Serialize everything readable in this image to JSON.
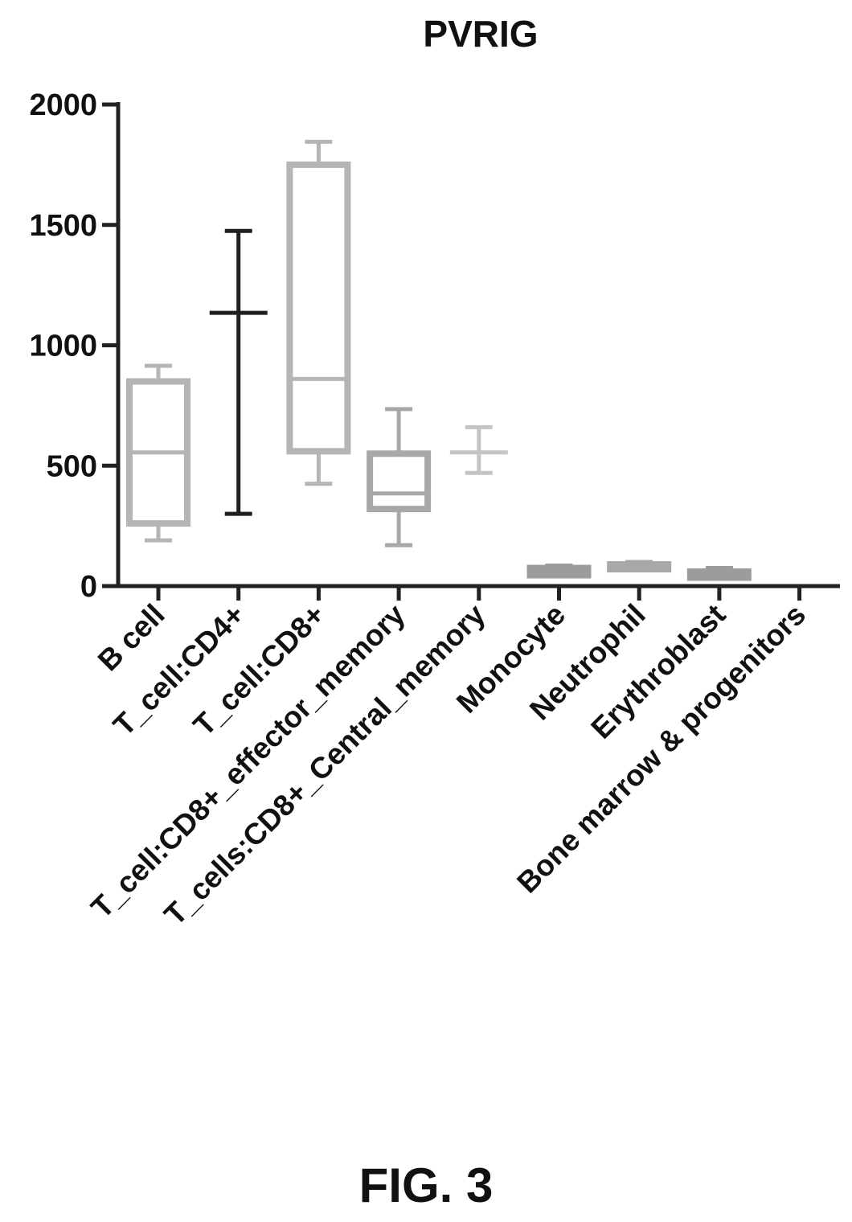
{
  "figure_label": "FIG. 3",
  "chart_data": {
    "type": "box",
    "title": "PVRIG",
    "xlabel": "",
    "ylabel": "",
    "ylim": [
      0,
      2000
    ],
    "yticks": [
      0,
      500,
      1000,
      1500,
      2000
    ],
    "ytick_labels": [
      "0",
      "500",
      "1000",
      "1500",
      "2000"
    ],
    "grid": false,
    "legend": "none",
    "categories": [
      "B cell",
      "T_cell:CD4+",
      "T_cell:CD8+",
      "T_cell:CD8+_effector_memory",
      "T_cells:CD8+_Central_memory",
      "Monocyte",
      "Neutrophil",
      "Erythroblast",
      "Bone marrow & progenitors"
    ],
    "boxes": [
      {
        "min": 190,
        "q1": 260,
        "median": 555,
        "q3": 850,
        "max": 915,
        "color": "#b5b5b5"
      },
      {
        "min": 300,
        "q1": 1135,
        "median": 1135,
        "q3": 1135,
        "max": 1475,
        "color": "#1f1f1f"
      },
      {
        "min": 425,
        "q1": 560,
        "median": 860,
        "q3": 1750,
        "max": 1845,
        "color": "#b5b5b5"
      },
      {
        "min": 170,
        "q1": 320,
        "median": 385,
        "q3": 550,
        "max": 735,
        "color": "#a8a8a8"
      },
      {
        "min": 470,
        "q1": 555,
        "median": 555,
        "q3": 555,
        "max": 660,
        "color": "#c4c4c4"
      },
      {
        "min": 40,
        "q1": 45,
        "median": 60,
        "q3": 75,
        "max": 85,
        "color": "#9c9c9c"
      },
      {
        "min": 65,
        "q1": 70,
        "median": 78,
        "q3": 90,
        "max": 100,
        "color": "#a8a8a8"
      },
      {
        "min": 30,
        "q1": 35,
        "median": 50,
        "q3": 60,
        "max": 75,
        "color": "#9c9c9c"
      },
      null
    ]
  }
}
